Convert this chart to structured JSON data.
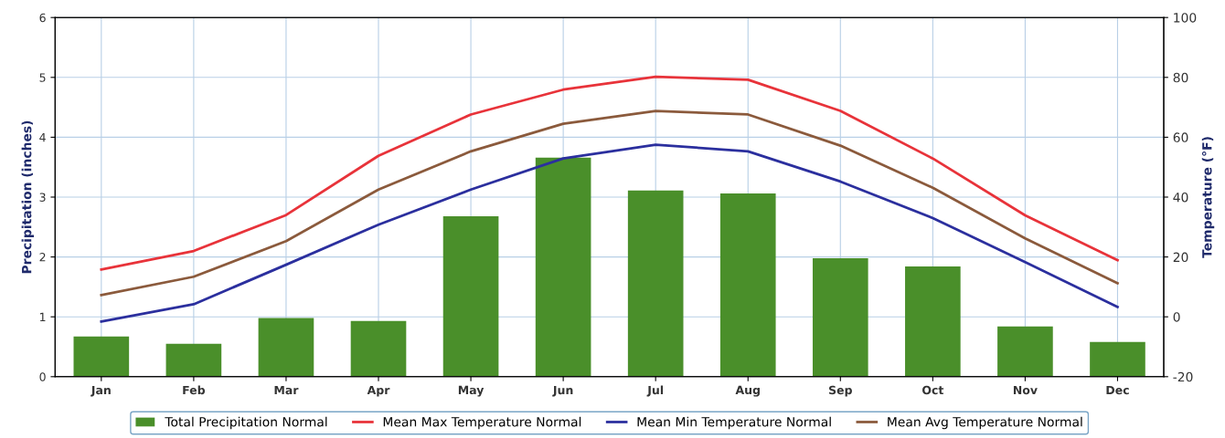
{
  "chart_data": {
    "type": "bar",
    "categories": [
      "Jan",
      "Feb",
      "Mar",
      "Apr",
      "May",
      "Jun",
      "Jul",
      "Aug",
      "Sep",
      "Oct",
      "Nov",
      "Dec"
    ],
    "ylabel": "Precipitation (inches)",
    "y2label": "Temperature (°F)",
    "ylim": [
      0,
      6
    ],
    "yticks": [
      0,
      1,
      2,
      3,
      4,
      5,
      6
    ],
    "y2lim": [
      -20,
      100
    ],
    "y2ticks": [
      -20,
      0,
      20,
      40,
      60,
      80,
      100
    ],
    "grid": true,
    "legend": "bottom",
    "series": [
      {
        "name": "Total Precipitation Normal",
        "color": "#4a8f2a",
        "values": [
          0.67,
          0.55,
          0.98,
          0.93,
          2.68,
          3.66,
          3.11,
          3.06,
          1.98,
          1.84,
          0.84,
          0.58
        ]
      },
      {
        "name": "Mean Max Temperature Normal",
        "type": "line",
        "axis": "y2",
        "color": "#e8333a",
        "values": [
          15.8,
          22,
          34,
          53.8,
          67.6,
          75.9,
          80.2,
          79.2,
          68.8,
          52.9,
          33.9,
          18.9
        ]
      },
      {
        "name": "Mean Min Temperature Normal",
        "type": "line",
        "axis": "y2",
        "color": "#2b2f9e",
        "values": [
          -1.6,
          4.2,
          17.4,
          30.8,
          42.5,
          52.9,
          57.5,
          55.3,
          45.2,
          33,
          18.3,
          3.3
        ]
      },
      {
        "name": "Mean Avg Temperature Normal",
        "type": "line",
        "axis": "y2",
        "color": "#8b5a3c",
        "values": [
          7.3,
          13.4,
          25.3,
          42.5,
          55.3,
          64.5,
          68.8,
          67.6,
          57.2,
          43.1,
          26.2,
          11.2
        ]
      }
    ]
  }
}
